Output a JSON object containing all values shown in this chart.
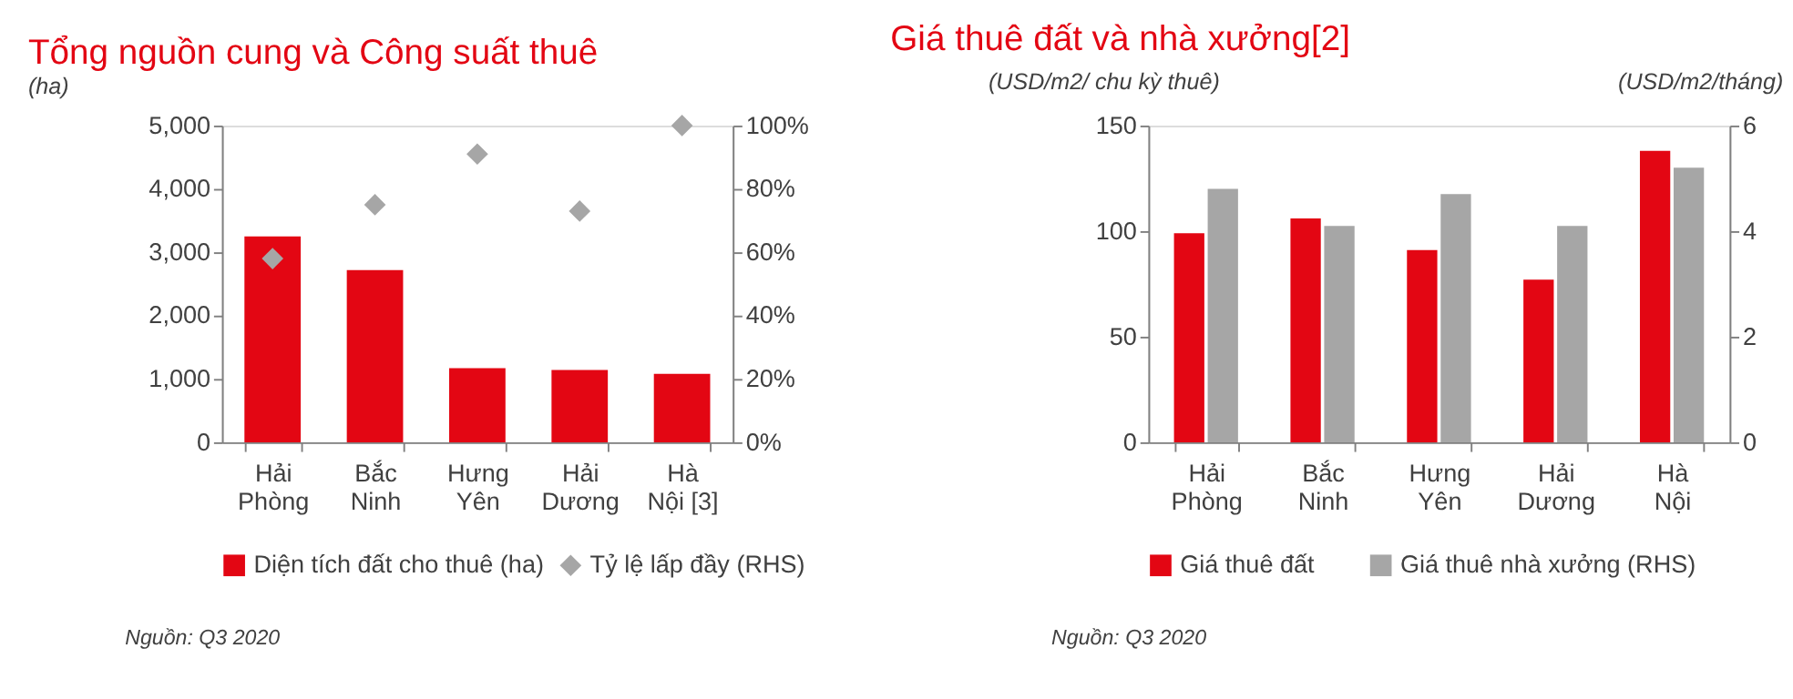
{
  "chart_data": [
    {
      "type": "bar",
      "title": "Tổng nguồn cung và Công suất thuê",
      "subtitle": "(ha)",
      "categories": [
        "Hải\nPhòng",
        "Bắc\nNinh",
        "Hưng\nYên",
        "Hải\nDương",
        "Hà\nNội [3]"
      ],
      "series": [
        {
          "name": "Diện tích đất cho thuê (ha)",
          "color": "#e30613",
          "values": [
            3250,
            2720,
            1170,
            1140,
            1080
          ]
        },
        {
          "name": "Tỷ lệ lấp đầy (RHS)",
          "type": "scatter",
          "marker": "diamond",
          "axis": "y2",
          "color": "#a6a6a6",
          "values": [
            58,
            75,
            91,
            73,
            100
          ]
        }
      ],
      "ylim": [
        0,
        5000
      ],
      "yticks": [
        0,
        {
          "value": 1000,
          "label": "1,000"
        },
        {
          "value": 2000,
          "label": "2,000"
        },
        {
          "value": 3000,
          "label": "3,000"
        },
        {
          "value": 4000,
          "label": "4,000"
        },
        {
          "value": 5000,
          "label": "5,000"
        }
      ],
      "y2lim": [
        0,
        100
      ],
      "y2ticks": [
        {
          "value": 0,
          "label": "0%"
        },
        {
          "value": 20,
          "label": "20%"
        },
        {
          "value": 40,
          "label": "40%"
        },
        {
          "value": 60,
          "label": "60%"
        },
        {
          "value": 80,
          "label": "80%"
        },
        {
          "value": 100,
          "label": "100%"
        }
      ],
      "grid": false,
      "legend": "bottom",
      "annotations": [
        "Nguồn: Q3 2020"
      ]
    },
    {
      "type": "bar",
      "title": "Giá thuê đất và nhà xưởng[2]",
      "ylabel": "(USD/m2/ chu kỳ thuê)",
      "y2label": "(USD/m2/tháng)",
      "categories": [
        "Hải\nPhòng",
        "Bắc\nNinh",
        "Hưng\nYên",
        "Hải\nDương",
        "Hà\nNội"
      ],
      "series": [
        {
          "name": "Giá thuê đất",
          "color": "#e30613",
          "values": [
            99,
            106,
            91,
            77,
            138
          ]
        },
        {
          "name": "Giá thuê nhà xưởng (RHS)",
          "axis": "y2",
          "color": "#a6a6a6",
          "values": [
            4.8,
            4.1,
            4.7,
            4.1,
            5.2
          ]
        }
      ],
      "ylim": [
        0,
        150
      ],
      "yticks": [
        0,
        50,
        100,
        150
      ],
      "y2lim": [
        0,
        6
      ],
      "y2ticks": [
        0,
        2,
        4,
        6
      ],
      "grid": false,
      "legend": "bottom",
      "annotations": [
        "Nguồn: Q3 2020"
      ]
    }
  ]
}
